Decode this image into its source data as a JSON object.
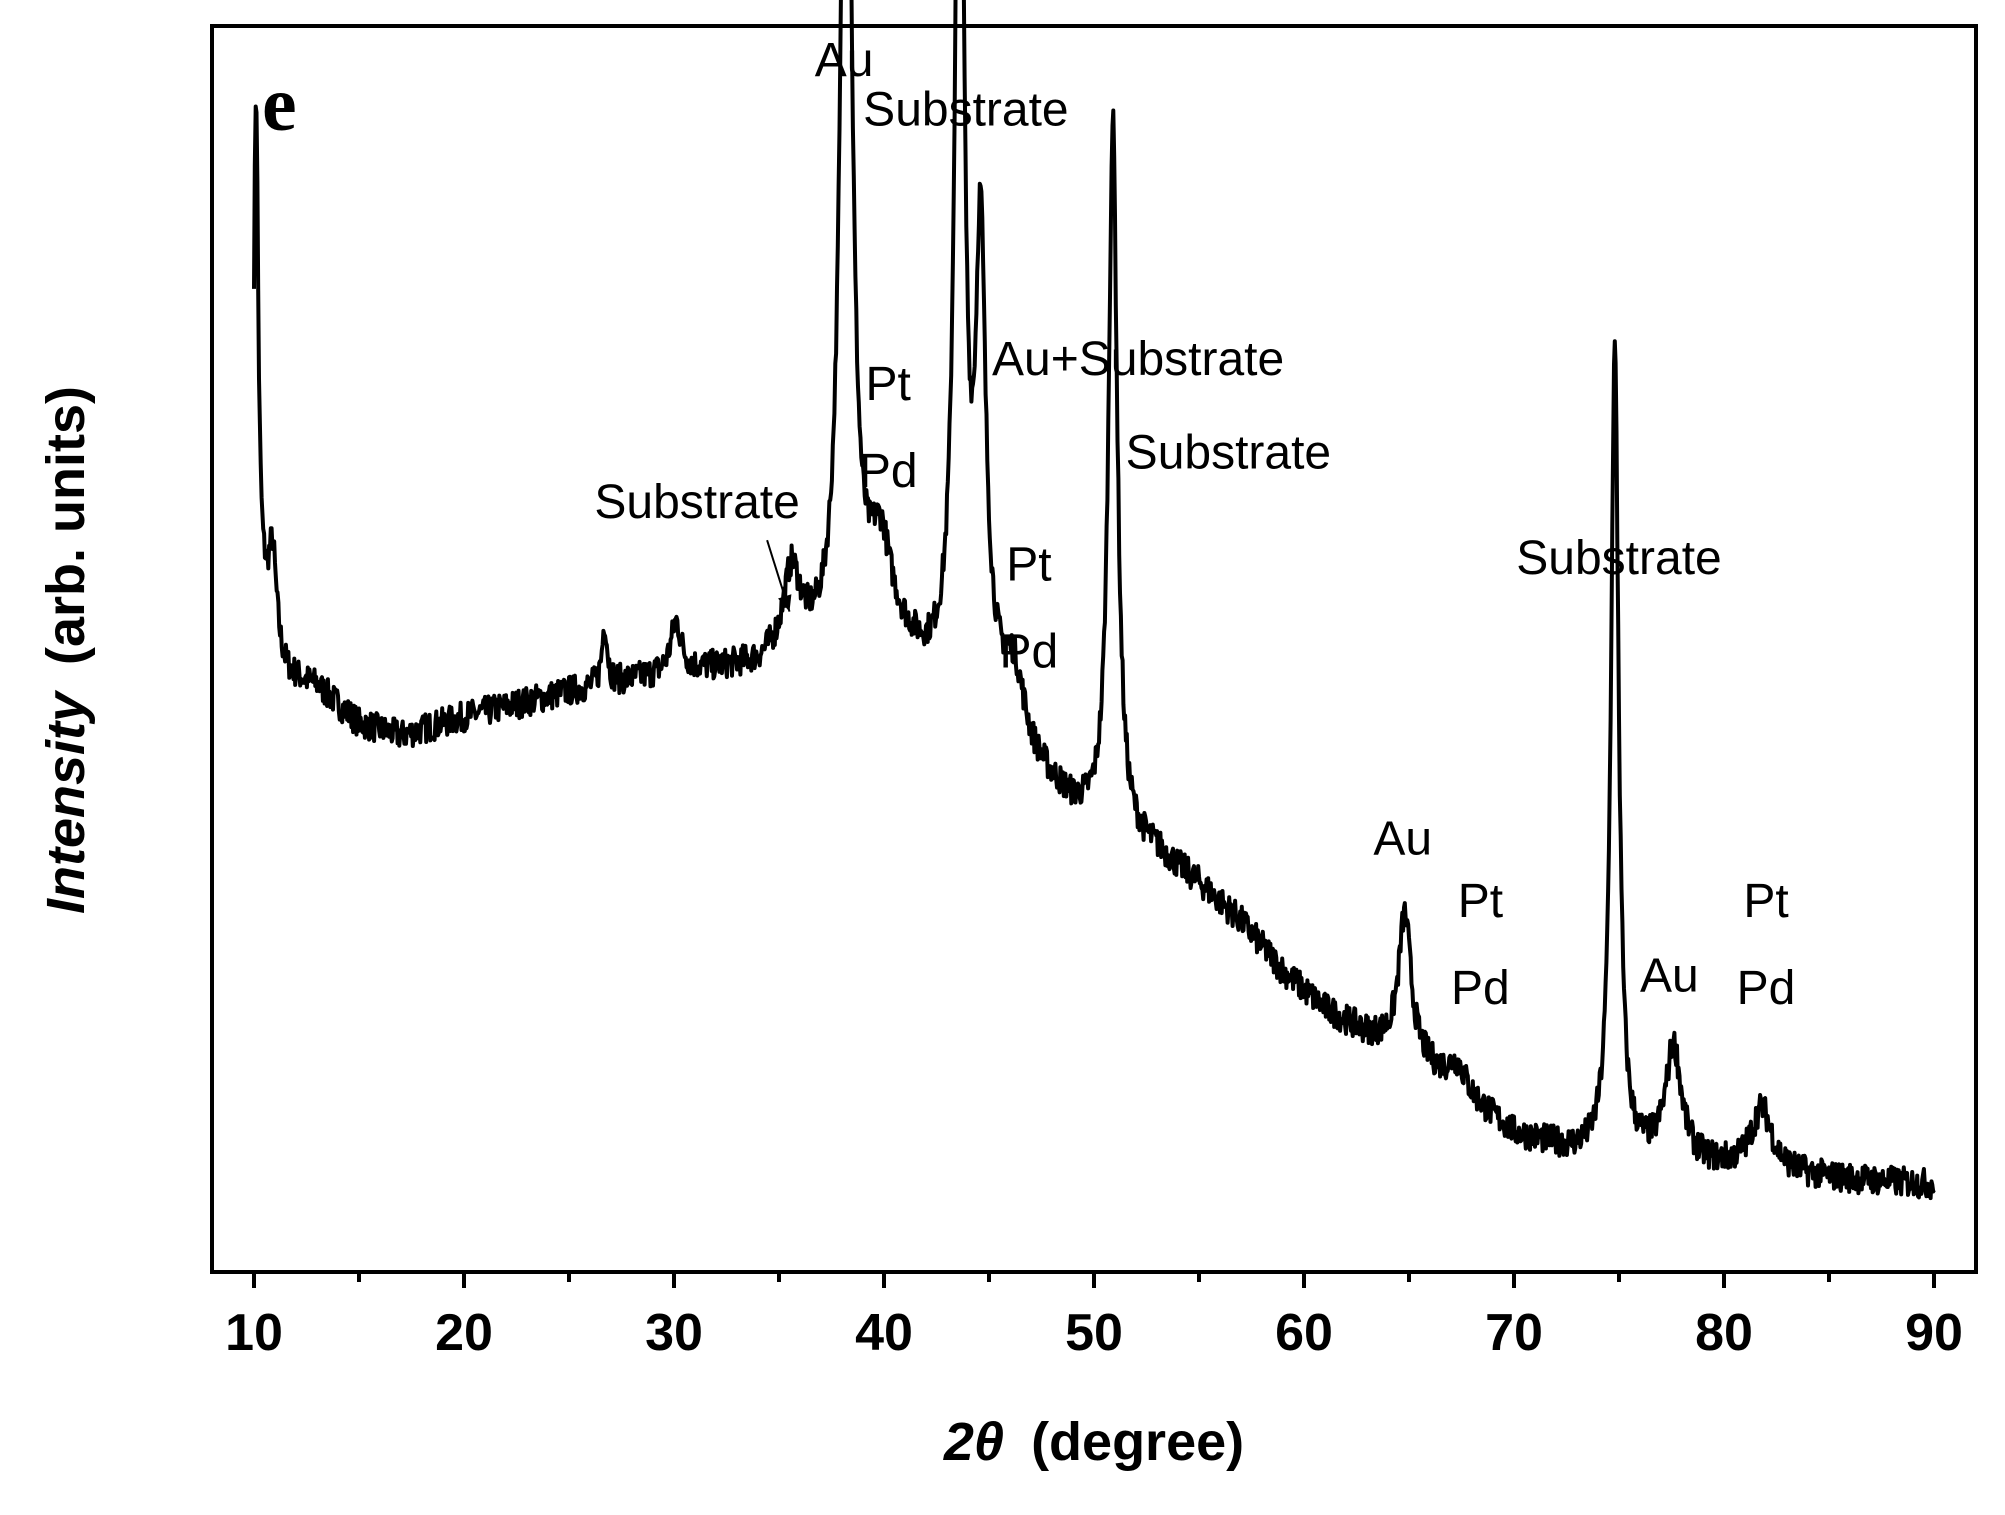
{
  "chart_data": {
    "type": "line",
    "panel_label": "e",
    "xlabel": {
      "symbol": "2θ",
      "unit": "(degree)"
    },
    "ylabel": {
      "quantity": "Intensity",
      "unit": "(arb. units)"
    },
    "xlim": [
      8,
      92
    ],
    "ylim": [
      0,
      100
    ],
    "x_ticks": [
      10,
      20,
      30,
      40,
      50,
      60,
      70,
      80,
      90
    ],
    "y_ticks_shown": false,
    "series": [
      {
        "name": "XRD pattern",
        "color": "#000000",
        "baseline": [
          [
            10,
            57
          ],
          [
            11,
            48
          ],
          [
            13,
            47
          ],
          [
            15,
            44
          ],
          [
            17,
            43
          ],
          [
            20,
            44.5
          ],
          [
            25,
            46.5
          ],
          [
            30,
            48
          ],
          [
            34,
            48.5
          ],
          [
            36,
            50
          ],
          [
            38,
            49
          ],
          [
            40,
            51.5
          ],
          [
            42,
            48
          ],
          [
            44,
            46
          ],
          [
            45,
            46
          ],
          [
            47,
            40.5
          ],
          [
            49,
            37
          ],
          [
            51,
            35
          ],
          [
            53,
            33.5
          ],
          [
            55,
            31
          ],
          [
            57,
            28
          ],
          [
            59,
            24
          ],
          [
            61,
            21
          ],
          [
            63,
            19
          ],
          [
            65,
            17.5
          ],
          [
            67,
            15
          ],
          [
            70,
            11
          ],
          [
            73,
            9.5
          ],
          [
            75,
            9
          ],
          [
            77,
            9
          ],
          [
            79,
            8.5
          ],
          [
            82,
            8
          ],
          [
            85,
            7.5
          ],
          [
            90,
            7
          ]
        ],
        "peaks": [
          {
            "x": 10.1,
            "height": 38,
            "width": 0.12
          },
          {
            "x": 10.9,
            "height": 9,
            "width": 0.25
          },
          {
            "x": 26.7,
            "height": 5,
            "width": 0.15
          },
          {
            "x": 30.1,
            "height": 4,
            "width": 0.3
          },
          {
            "x": 35.6,
            "height": 6,
            "width": 0.45
          },
          {
            "x": 38.2,
            "height": 88,
            "width": 0.3
          },
          {
            "x": 39.8,
            "height": 6,
            "width": 0.6
          },
          {
            "x": 43.6,
            "height": 85,
            "width": 0.25
          },
          {
            "x": 44.6,
            "height": 35,
            "width": 0.28
          },
          {
            "x": 46.2,
            "height": 5,
            "width": 0.6
          },
          {
            "x": 50.9,
            "height": 57,
            "width": 0.25
          },
          {
            "x": 64.8,
            "height": 11,
            "width": 0.35
          },
          {
            "x": 67.3,
            "height": 2,
            "width": 0.5
          },
          {
            "x": 74.8,
            "height": 65,
            "width": 0.22
          },
          {
            "x": 77.6,
            "height": 9,
            "width": 0.45
          },
          {
            "x": 81.8,
            "height": 5,
            "width": 0.6
          }
        ],
        "noise_amplitude": 1.2
      }
    ],
    "annotations": [
      {
        "text": "Au",
        "x": 38.1,
        "y": 96
      },
      {
        "text": "Substrate",
        "x": 43.9,
        "y": 92
      },
      {
        "text": "Pt",
        "x": 40.2,
        "y": 70
      },
      {
        "text": "Pd",
        "x": 40.2,
        "y": 63
      },
      {
        "text": "Au+Substrate",
        "x": 52.1,
        "y": 72
      },
      {
        "text": "Substrate",
        "x": 56.4,
        "y": 64.5
      },
      {
        "text": "Pt",
        "x": 46.9,
        "y": 55.5
      },
      {
        "text": "Pd",
        "x": 46.9,
        "y": 48.5
      },
      {
        "text": "Substrate",
        "x": 31.1,
        "y": 60.5,
        "arrow_to": [
          35.5,
          53
        ]
      },
      {
        "text": "Substrate",
        "x": 75.0,
        "y": 56
      },
      {
        "text": "Au",
        "x": 64.7,
        "y": 33.5
      },
      {
        "text": "Pt",
        "x": 68.4,
        "y": 28.5
      },
      {
        "text": "Pd",
        "x": 68.4,
        "y": 21.5
      },
      {
        "text": "Au",
        "x": 77.4,
        "y": 22.5
      },
      {
        "text": "Pt",
        "x": 82.0,
        "y": 28.5
      },
      {
        "text": "Pd",
        "x": 82.0,
        "y": 21.5
      }
    ],
    "grid": false,
    "legend": "none"
  }
}
